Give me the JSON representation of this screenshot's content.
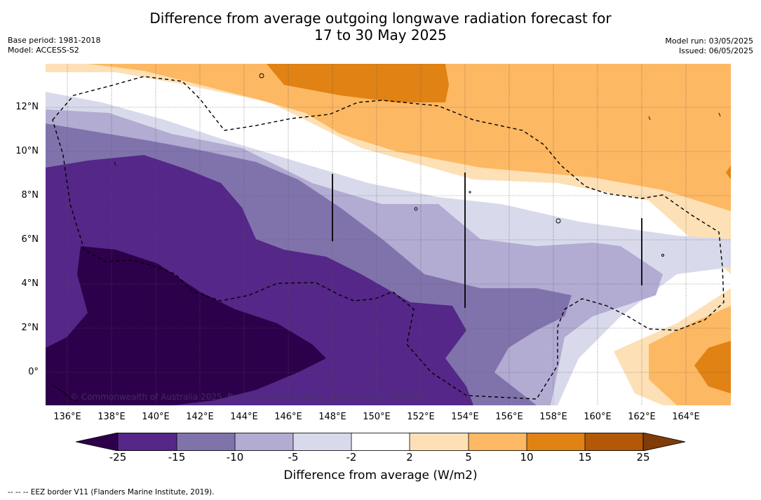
{
  "title_line1": "Difference from average outgoing longwave radiation forecast for",
  "title_line2": "17 to 30 May 2025",
  "meta_left": {
    "base_period": "Base period: 1981-2018",
    "model": "Model: ACCESS-S2"
  },
  "meta_right": {
    "model_run": "Model run: 03/05/2025",
    "issued": "Issued: 06/05/2025"
  },
  "map": {
    "lat_labels": [
      "12°N",
      "10°N",
      "8°N",
      "6°N",
      "4°N",
      "2°N",
      "0°"
    ],
    "lon_labels": [
      "136°E",
      "138°E",
      "140°E",
      "142°E",
      "144°E",
      "146°E",
      "148°E",
      "150°E",
      "152°E",
      "154°E",
      "156°E",
      "158°E",
      "160°E",
      "162°E",
      "164°E"
    ],
    "copyright": "© Commonwealth of Australia 2025, Bureau of Meteorology, supported by COSPPac"
  },
  "colorbar": {
    "ticks": [
      "-25",
      "-15",
      "-10",
      "-5",
      "-2",
      "2",
      "5",
      "10",
      "15",
      "25"
    ],
    "colors": [
      "#2d004b",
      "#542788",
      "#8073ac",
      "#b2abd2",
      "#d8daeb",
      "#ffffff",
      "#fee0b6",
      "#fdb863",
      "#e08214",
      "#b35806",
      "#7f3b08"
    ],
    "label": "Difference from average (W/m2)"
  },
  "footnote": "-- -- -- EEZ border V11 (Flanders Marine Institute, 2019)."
}
